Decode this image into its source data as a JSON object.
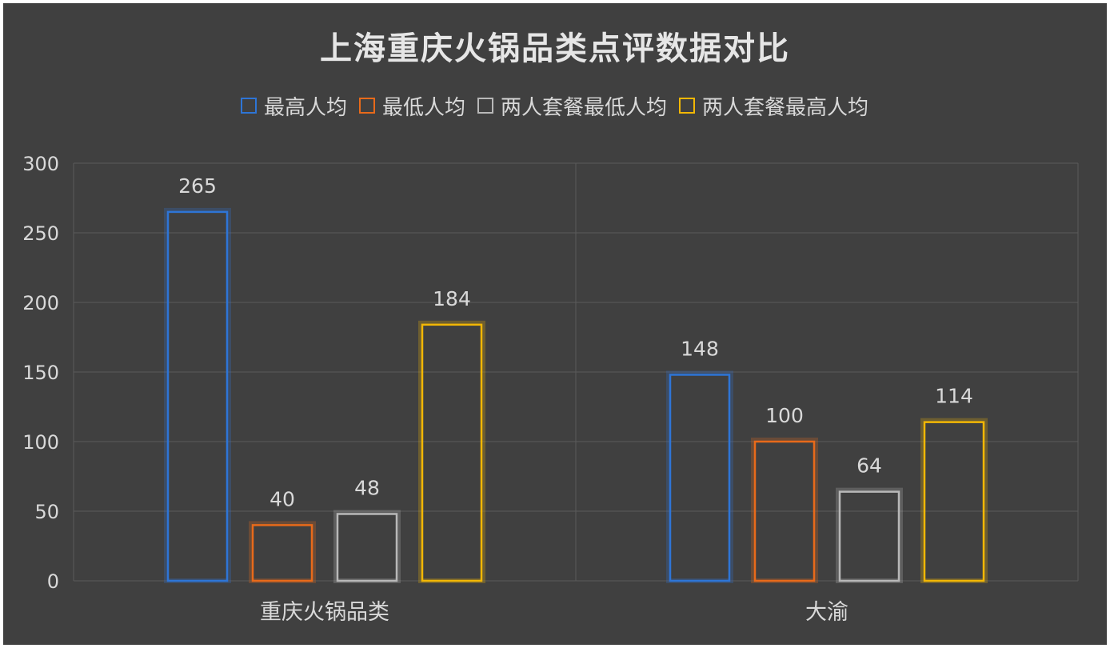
{
  "chart_data": {
    "type": "bar",
    "title": "上海重庆火锅品类点评数据对比",
    "categories": [
      "重庆火锅品类",
      "大渝"
    ],
    "series": [
      {
        "name": "最高人均",
        "values": [
          265,
          148
        ],
        "color": "#2e75d6"
      },
      {
        "name": "最低人均",
        "values": [
          40,
          100
        ],
        "color": "#e86a1a"
      },
      {
        "name": "两人套餐最低人均",
        "values": [
          48,
          64
        ],
        "color": "#b8b8b8"
      },
      {
        "name": "两人套餐最高人均",
        "values": [
          184,
          114
        ],
        "color": "#f2b705"
      }
    ],
    "ylim": [
      0,
      300
    ],
    "yticks": [
      "0",
      "50",
      "100",
      "150",
      "200",
      "250",
      "300"
    ],
    "legend": "top",
    "grid": true,
    "data_labels": true
  },
  "colors": {
    "background": "#404040",
    "grid": "#5a5a5a",
    "text": "#d9d9d9"
  }
}
